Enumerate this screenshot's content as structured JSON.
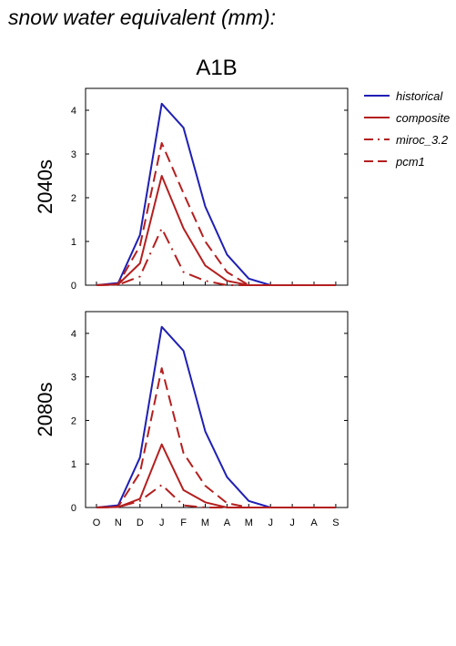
{
  "header": {
    "title": "snow water equivalent (mm):"
  },
  "chart_data": [
    {
      "type": "line",
      "title": "A1B",
      "ylabel": "2040s",
      "categories": [
        "O",
        "N",
        "D",
        "J",
        "F",
        "M",
        "A",
        "M",
        "J",
        "J",
        "A",
        "S"
      ],
      "ylim": [
        0,
        4.5
      ],
      "yticks": [
        0,
        1,
        2,
        3,
        4
      ],
      "series": [
        {
          "name": "historical",
          "color": "#1f1fb4",
          "dash": "solid",
          "values": [
            0,
            0.05,
            1.15,
            4.15,
            3.6,
            1.8,
            0.7,
            0.15,
            0,
            0,
            0,
            0
          ]
        },
        {
          "name": "composite",
          "color": "#b41f1f",
          "dash": "solid",
          "values": [
            0,
            0.02,
            0.5,
            2.5,
            1.3,
            0.45,
            0.1,
            0,
            0,
            0,
            0,
            0
          ]
        },
        {
          "name": "miroc_3.2",
          "color": "#b41f1f",
          "dash": "dashdot",
          "values": [
            0,
            0.01,
            0.2,
            1.3,
            0.3,
            0.1,
            0,
            0,
            0,
            0,
            0,
            0
          ]
        },
        {
          "name": "pcm1",
          "color": "#b41f1f",
          "dash": "dash",
          "values": [
            0,
            0.03,
            0.9,
            3.25,
            2.1,
            1.0,
            0.3,
            0,
            0,
            0,
            0,
            0
          ]
        }
      ],
      "legend": "right"
    },
    {
      "type": "line",
      "title": "",
      "ylabel": "2080s",
      "categories": [
        "O",
        "N",
        "D",
        "J",
        "F",
        "M",
        "A",
        "M",
        "J",
        "J",
        "A",
        "S"
      ],
      "ylim": [
        0,
        4.5
      ],
      "yticks": [
        0,
        1,
        2,
        3,
        4
      ],
      "series": [
        {
          "name": "historical",
          "color": "#1f1fb4",
          "dash": "solid",
          "values": [
            0,
            0.05,
            1.15,
            4.15,
            3.6,
            1.75,
            0.7,
            0.15,
            0,
            0,
            0,
            0
          ]
        },
        {
          "name": "composite",
          "color": "#b41f1f",
          "dash": "solid",
          "values": [
            0,
            0.01,
            0.2,
            1.45,
            0.4,
            0.12,
            0,
            0,
            0,
            0,
            0,
            0
          ]
        },
        {
          "name": "miroc_3.2",
          "color": "#b41f1f",
          "dash": "dashdot",
          "values": [
            0,
            0.01,
            0.15,
            0.52,
            0.05,
            0,
            0,
            0,
            0,
            0,
            0,
            0
          ]
        },
        {
          "name": "pcm1",
          "color": "#b41f1f",
          "dash": "dash",
          "values": [
            0,
            0.02,
            0.8,
            3.2,
            1.25,
            0.5,
            0.1,
            0,
            0,
            0,
            0,
            0
          ]
        }
      ]
    }
  ]
}
